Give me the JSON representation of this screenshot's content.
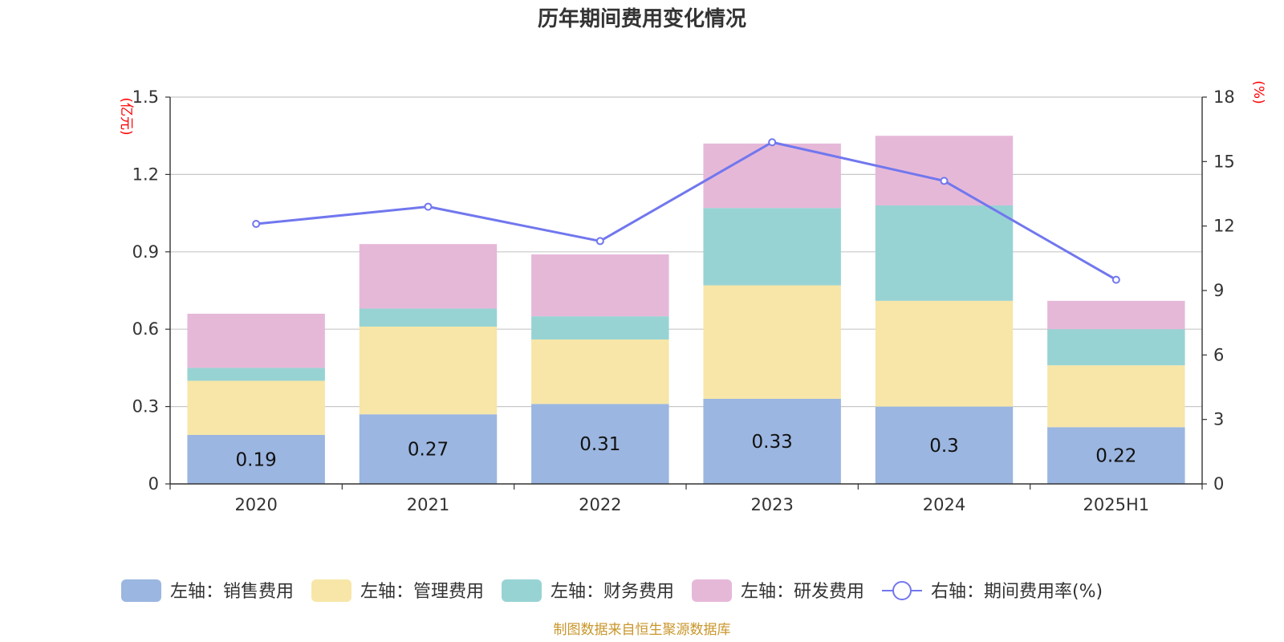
{
  "chart_data": {
    "type": "bar",
    "title": "历年期间费用变化情况",
    "categories": [
      "2020",
      "2021",
      "2022",
      "2023",
      "2024",
      "2025H1"
    ],
    "left_axis": {
      "unit": "(亿元)",
      "ylim": [
        0,
        1.5
      ],
      "ticks": [
        "0",
        "0.3",
        "0.6",
        "0.9",
        "1.2",
        "1.5"
      ]
    },
    "right_axis": {
      "unit": "(%)",
      "ylim": [
        0,
        18
      ],
      "ticks": [
        "0",
        "3",
        "6",
        "9",
        "12",
        "15",
        "18"
      ]
    },
    "grid": true,
    "stacked": true,
    "series": [
      {
        "name": "左轴：销售费用",
        "color": "#9bb6e0",
        "values": [
          0.19,
          0.27,
          0.31,
          0.33,
          0.3,
          0.22
        ],
        "labels": [
          "0.19",
          "0.27",
          "0.31",
          "0.33",
          "0.3",
          "0.22"
        ]
      },
      {
        "name": "左轴：管理费用",
        "color": "#f7e6a8",
        "values": [
          0.21,
          0.34,
          0.25,
          0.44,
          0.41,
          0.24
        ]
      },
      {
        "name": "左轴：财务费用",
        "color": "#98d3d4",
        "values": [
          0.05,
          0.07,
          0.09,
          0.3,
          0.37,
          0.14
        ]
      },
      {
        "name": "左轴：研发费用",
        "color": "#e6b8d8",
        "values": [
          0.21,
          0.25,
          0.24,
          0.25,
          0.27,
          0.11
        ]
      }
    ],
    "line": {
      "name": "右轴：期间费用率(%)",
      "color": "#7177ee",
      "axis": "right",
      "values": [
        12.1,
        12.9,
        11.3,
        15.9,
        14.1,
        9.5
      ]
    },
    "legend_position": "bottom",
    "source": "制图数据来自恒生聚源数据库"
  }
}
